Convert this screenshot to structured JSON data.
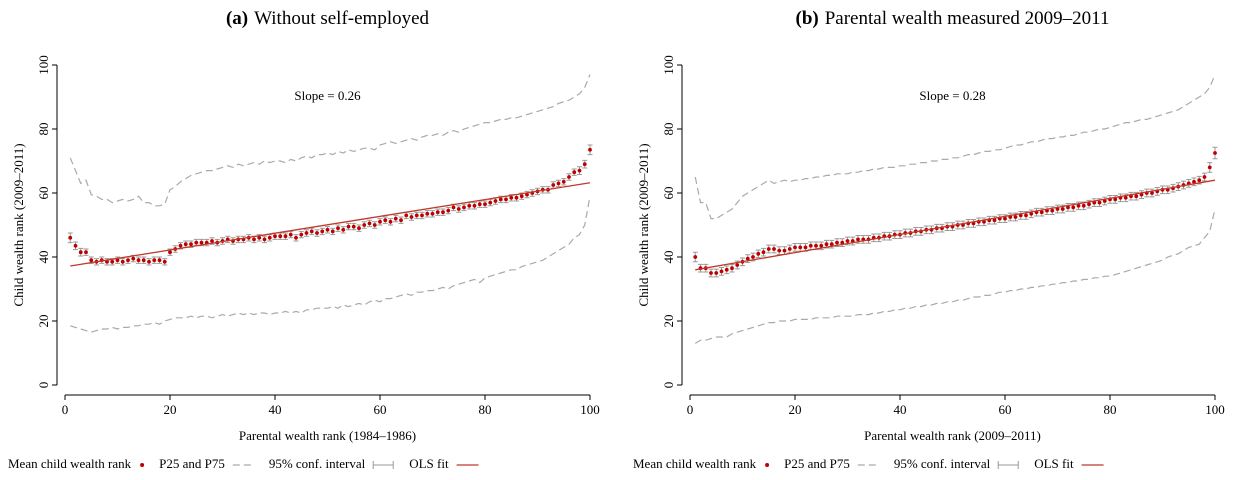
{
  "chart_data": [
    {
      "type": "scatter",
      "label": "(a)",
      "title": "Without self-employed",
      "annotation": "Slope = 0.26",
      "x_label": "Parental wealth rank (1984–1986)",
      "y_label": "Child wealth rank (2009–2011)",
      "xlim": [
        0,
        100
      ],
      "ylim": [
        0,
        100
      ],
      "xticks": [
        0,
        20,
        40,
        60,
        80,
        100
      ],
      "yticks": [
        0,
        20,
        40,
        60,
        80,
        100
      ],
      "x": [
        1,
        2,
        3,
        4,
        5,
        6,
        7,
        8,
        9,
        10,
        11,
        12,
        13,
        14,
        15,
        16,
        17,
        18,
        19,
        20,
        21,
        22,
        23,
        24,
        25,
        26,
        27,
        28,
        29,
        30,
        31,
        32,
        33,
        34,
        35,
        36,
        37,
        38,
        39,
        40,
        41,
        42,
        43,
        44,
        45,
        46,
        47,
        48,
        49,
        50,
        51,
        52,
        53,
        54,
        55,
        56,
        57,
        58,
        59,
        60,
        61,
        62,
        63,
        64,
        65,
        66,
        67,
        68,
        69,
        70,
        71,
        72,
        73,
        74,
        75,
        76,
        77,
        78,
        79,
        80,
        81,
        82,
        83,
        84,
        85,
        86,
        87,
        88,
        89,
        90,
        91,
        92,
        93,
        94,
        95,
        96,
        97,
        98,
        99,
        100
      ],
      "series": [
        {
          "name": "Mean child wealth rank",
          "color": "#c00000",
          "error_label": "95% conf. interval",
          "error_color": "#999999",
          "values": [
            46,
            43.5,
            41.5,
            41.5,
            39,
            38.5,
            39,
            38.5,
            38.5,
            39,
            38.5,
            39,
            39.5,
            39,
            39,
            38.5,
            39,
            39,
            38.5,
            41.5,
            42.5,
            43.5,
            44,
            44,
            44.5,
            44.5,
            44.5,
            45,
            44.5,
            45,
            45.5,
            45,
            45.5,
            45.5,
            46,
            45.5,
            46,
            45.5,
            46,
            46.5,
            46.5,
            46.5,
            47,
            46,
            47,
            47.5,
            48,
            47.5,
            48,
            48.5,
            48,
            49,
            48.5,
            49.5,
            49.5,
            49,
            50,
            50.5,
            50,
            51,
            51.5,
            51,
            52,
            51.5,
            53,
            52.5,
            53,
            53,
            53.5,
            53.5,
            54,
            54,
            54.5,
            55.5,
            55,
            55.5,
            56,
            56,
            56.5,
            56.5,
            57,
            57.5,
            58,
            58,
            58.5,
            58.5,
            59,
            59.5,
            60,
            60.5,
            61,
            61,
            62.5,
            63,
            63.5,
            65,
            66.5,
            67,
            69,
            73.5
          ],
          "errors": [
            1.5,
            1.2,
            1.2,
            1,
            1,
            1,
            1,
            1,
            1,
            1,
            1,
            1,
            1,
            1,
            1,
            1,
            1,
            1,
            1,
            1,
            1,
            1,
            1,
            1,
            1,
            1,
            1,
            1,
            1,
            1,
            1,
            1,
            1,
            1,
            1,
            1,
            1,
            1,
            1,
            1,
            1,
            1,
            1,
            1,
            1,
            1,
            1,
            1,
            1,
            1,
            1,
            1,
            1,
            1,
            1,
            1,
            1,
            1,
            1,
            1,
            1,
            1,
            1,
            1,
            1,
            1,
            1,
            1,
            1,
            1,
            1,
            1,
            1,
            1,
            1,
            1,
            1,
            1,
            1,
            1,
            1,
            1,
            1,
            1,
            1,
            1,
            1,
            1,
            1,
            1,
            1,
            1,
            1,
            1,
            1,
            1,
            1,
            1.2,
            1.2,
            1.5
          ]
        },
        {
          "name": "P25 and P75",
          "color": "#aaaaaa",
          "p25": [
            18.5,
            18,
            17.5,
            17,
            16.5,
            17,
            17.5,
            17.5,
            18,
            17.5,
            18,
            18,
            18.5,
            18.5,
            19,
            19,
            19.5,
            19,
            20,
            20.5,
            21,
            21,
            21,
            21.5,
            21,
            21.5,
            21.5,
            21,
            21.5,
            22,
            21.5,
            22,
            22.5,
            22,
            22.5,
            22,
            22.5,
            22.5,
            22,
            22.5,
            22.5,
            23,
            22.5,
            23,
            22.5,
            23.5,
            23.5,
            24,
            24,
            24,
            24.5,
            24,
            25,
            24.5,
            25,
            25.5,
            25,
            26,
            26.5,
            26,
            27,
            27,
            27.5,
            28,
            28.5,
            28,
            29,
            29,
            29.5,
            29.5,
            30,
            30.5,
            30,
            31,
            31.5,
            32,
            32.5,
            33,
            32,
            33.5,
            34,
            34.5,
            35,
            35.5,
            36,
            36,
            37,
            37.5,
            38,
            38.5,
            39,
            40,
            41,
            42,
            43,
            44,
            46,
            47,
            50,
            59
          ],
          "p75": [
            71,
            67,
            63,
            64,
            59.5,
            59,
            58,
            58,
            57,
            57.5,
            58,
            57.5,
            58,
            59,
            57,
            57,
            56,
            56,
            56.5,
            61,
            62,
            63.5,
            64.5,
            65.5,
            66,
            66.5,
            67,
            67,
            67.5,
            68,
            68.5,
            68,
            69,
            68.5,
            69,
            69.5,
            69,
            70,
            69.5,
            70,
            70,
            69.5,
            70.5,
            70,
            71,
            71.5,
            71,
            72,
            72,
            72.5,
            72,
            73,
            72.5,
            73.5,
            73,
            73.5,
            74,
            74,
            73.5,
            75,
            75.5,
            76,
            75.5,
            76,
            76.5,
            77,
            76.5,
            77.5,
            78,
            78,
            78.5,
            78,
            79,
            79.5,
            79,
            80,
            80.5,
            81,
            81.5,
            82,
            82,
            82.5,
            83,
            83,
            83.5,
            83.5,
            84,
            84.5,
            85,
            85.5,
            86,
            86.5,
            87,
            88,
            88.5,
            89,
            90,
            91,
            93,
            97
          ]
        },
        {
          "name": "OLS fit",
          "color": "#c0392b",
          "fit_x": [
            1,
            100
          ],
          "fit": [
            37.2,
            63.2
          ]
        }
      ]
    },
    {
      "type": "scatter",
      "label": "(b)",
      "title": "Parental wealth measured 2009–2011",
      "annotation": "Slope = 0.28",
      "x_label": "Parental wealth rank (2009–2011)",
      "y_label": "Child wealth rank (2009–2011)",
      "xlim": [
        0,
        100
      ],
      "ylim": [
        0,
        100
      ],
      "xticks": [
        0,
        20,
        40,
        60,
        80,
        100
      ],
      "yticks": [
        0,
        20,
        40,
        60,
        80,
        100
      ],
      "x": [
        1,
        2,
        3,
        4,
        5,
        6,
        7,
        8,
        9,
        10,
        11,
        12,
        13,
        14,
        15,
        16,
        17,
        18,
        19,
        20,
        21,
        22,
        23,
        24,
        25,
        26,
        27,
        28,
        29,
        30,
        31,
        32,
        33,
        34,
        35,
        36,
        37,
        38,
        39,
        40,
        41,
        42,
        43,
        44,
        45,
        46,
        47,
        48,
        49,
        50,
        51,
        52,
        53,
        54,
        55,
        56,
        57,
        58,
        59,
        60,
        61,
        62,
        63,
        64,
        65,
        66,
        67,
        68,
        69,
        70,
        71,
        72,
        73,
        74,
        75,
        76,
        77,
        78,
        79,
        80,
        81,
        82,
        83,
        84,
        85,
        86,
        87,
        88,
        89,
        90,
        91,
        92,
        93,
        94,
        95,
        96,
        97,
        98,
        99,
        100
      ],
      "series": [
        {
          "name": "Mean child wealth rank",
          "color": "#c00000",
          "error_label": "95% conf. interval",
          "error_color": "#999999",
          "values": [
            40,
            36.5,
            36.5,
            35,
            35,
            35.5,
            36,
            36.5,
            37.5,
            38.5,
            39.5,
            40,
            41,
            41.5,
            42.5,
            42.5,
            42,
            42,
            42.5,
            43,
            43,
            43,
            43.5,
            43.5,
            43.5,
            44,
            44,
            44.5,
            44.5,
            45,
            45,
            45.5,
            45.5,
            45.5,
            46,
            46,
            46.5,
            46.5,
            47,
            47,
            47.5,
            47.5,
            48,
            48,
            48.5,
            48.5,
            49,
            49,
            49.5,
            49.5,
            50,
            50,
            50.5,
            50.5,
            51,
            51,
            51.5,
            51.5,
            52,
            52,
            52.5,
            52.5,
            53,
            53,
            53.5,
            54,
            54,
            54.5,
            54.5,
            55,
            55,
            55.5,
            55.5,
            56,
            56,
            56.5,
            57,
            57,
            57.5,
            58,
            58,
            58.5,
            58.5,
            59,
            59,
            59.5,
            60,
            60,
            60.5,
            61,
            61,
            61.5,
            62,
            62.5,
            63,
            63.5,
            64,
            65,
            68,
            72.5
          ],
          "errors": [
            1.5,
            1.2,
            1.2,
            1.2,
            1.2,
            1.2,
            1.2,
            1.2,
            1.2,
            1.2,
            1.2,
            1.2,
            1.2,
            1.2,
            1.2,
            1.2,
            1.2,
            1.2,
            1.2,
            1.2,
            1.2,
            1.2,
            1.2,
            1.2,
            1.2,
            1.2,
            1.2,
            1.2,
            1.2,
            1.2,
            1.2,
            1.2,
            1.2,
            1.2,
            1.2,
            1.2,
            1.2,
            1.2,
            1.2,
            1.2,
            1.2,
            1.2,
            1.2,
            1.2,
            1.2,
            1.2,
            1.2,
            1.2,
            1.2,
            1.2,
            1.2,
            1.2,
            1.2,
            1.2,
            1.2,
            1.2,
            1.2,
            1.2,
            1.2,
            1.2,
            1.2,
            1.2,
            1.2,
            1.2,
            1.2,
            1.2,
            1.2,
            1.2,
            1.2,
            1.2,
            1.2,
            1.2,
            1.2,
            1.2,
            1.2,
            1.2,
            1.2,
            1.2,
            1.2,
            1.2,
            1.2,
            1.2,
            1.2,
            1.2,
            1.2,
            1.2,
            1.2,
            1.2,
            1.2,
            1.2,
            1.2,
            1.2,
            1.2,
            1.2,
            1.2,
            1.2,
            1.2,
            1.2,
            1.5,
            1.8
          ]
        },
        {
          "name": "P25 and P75",
          "color": "#aaaaaa",
          "p25": [
            13,
            14,
            14,
            14.5,
            15,
            15,
            15,
            16,
            16.5,
            17,
            17.5,
            18,
            18.5,
            19,
            19.5,
            19.5,
            20,
            20,
            20,
            20.5,
            20.5,
            20.5,
            20.5,
            21,
            21,
            21,
            21,
            21.5,
            21.5,
            21.5,
            21.5,
            22,
            22,
            22,
            22.5,
            22.5,
            23,
            23,
            23.5,
            23.5,
            24,
            24,
            24.5,
            24.5,
            25,
            25,
            25.5,
            25.5,
            26,
            26,
            26.5,
            26.5,
            27,
            27.5,
            27.5,
            28,
            28,
            28.5,
            29,
            29,
            29.5,
            29.5,
            30,
            30,
            30.5,
            30.5,
            31,
            31,
            31.5,
            31.5,
            32,
            32,
            32.5,
            32.5,
            33,
            33,
            33.5,
            33.5,
            34,
            34,
            34.5,
            35,
            35.5,
            36,
            36.5,
            37,
            37.5,
            38,
            38.5,
            39,
            40,
            40.5,
            41,
            42,
            43,
            43.5,
            44,
            46,
            48,
            55
          ],
          "p75": [
            65,
            57,
            57,
            52,
            52,
            53,
            54,
            55,
            57,
            59,
            60,
            61,
            62,
            63,
            64,
            63,
            63.5,
            64,
            63.5,
            64,
            64,
            64.5,
            64.5,
            65,
            65,
            65.5,
            65.5,
            66,
            66,
            66,
            66.5,
            66.5,
            67,
            67,
            67.5,
            67.5,
            68,
            68,
            68,
            68.5,
            68.5,
            69,
            69,
            69.5,
            69.5,
            70,
            70,
            70.5,
            70.5,
            71,
            71,
            71.5,
            72,
            72,
            72.5,
            73,
            73,
            73.5,
            73.5,
            74,
            74.5,
            75,
            75,
            75.5,
            76,
            76,
            76.5,
            77,
            77,
            77.5,
            77.5,
            78,
            78,
            78.5,
            79,
            79,
            79.5,
            80,
            80,
            80.5,
            81,
            81.5,
            82,
            82,
            82.5,
            83,
            83,
            83.5,
            84,
            84.5,
            85,
            85.5,
            86,
            87,
            88,
            89,
            90,
            91,
            93,
            97
          ]
        },
        {
          "name": "OLS fit",
          "color": "#c0392b",
          "fit_x": [
            1,
            100
          ],
          "fit": [
            36,
            64
          ]
        }
      ]
    }
  ]
}
